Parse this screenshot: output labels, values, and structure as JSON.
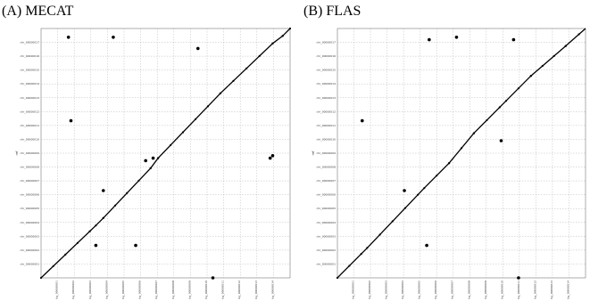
{
  "panels": [
    {
      "title": "(A) MECAT",
      "chart_data": {
        "type": "scatter",
        "title": "(A) MECAT",
        "ylabel": "ref",
        "x_tick_labels": [
          "tig_00000001",
          "tig_00000002",
          "tig_00000003",
          "tig_00000004",
          "tig_00000005",
          "tig_00000006",
          "tig_00000007",
          "tig_00000008",
          "tig_00000009",
          "tig_00000010",
          "tig_00000011",
          "tig_00000012",
          "tig_00000013",
          "tig_00000014"
        ],
        "y_tick_labels": [
          "chr_00000001",
          "chr_00000002",
          "chr_00000003",
          "chr_00000004",
          "chr_00000005",
          "chr_00000006",
          "chr_00000007",
          "chr_00000008",
          "chr_00000009",
          "chr_00000010",
          "chr_00000011",
          "chr_00000012",
          "chr_00000013",
          "chr_00000014",
          "chr_00000015",
          "chr_00000016",
          "chr_00000017"
        ],
        "xlim": [
          0,
          1
        ],
        "ylim": [
          0,
          1
        ],
        "grid": true,
        "diagonal": [
          [
            0.0,
            0.0
          ],
          [
            0.22,
            0.21
          ],
          [
            0.25,
            0.24
          ],
          [
            0.44,
            0.44
          ],
          [
            0.47,
            0.48
          ],
          [
            0.72,
            0.74
          ],
          [
            0.93,
            0.94
          ],
          [
            0.97,
            0.97
          ],
          [
            1.0,
            1.0
          ]
        ],
        "points": [
          {
            "x": 0.11,
            "y": 0.965
          },
          {
            "x": 0.29,
            "y": 0.965
          },
          {
            "x": 0.63,
            "y": 0.92
          },
          {
            "x": 0.12,
            "y": 0.63
          },
          {
            "x": 0.45,
            "y": 0.48
          },
          {
            "x": 0.42,
            "y": 0.47
          },
          {
            "x": 0.92,
            "y": 0.48
          },
          {
            "x": 0.93,
            "y": 0.49
          },
          {
            "x": 0.25,
            "y": 0.35
          },
          {
            "x": 0.22,
            "y": 0.13
          },
          {
            "x": 0.38,
            "y": 0.13
          },
          {
            "x": 0.69,
            "y": 0.0
          }
        ]
      }
    },
    {
      "title": "(B) FLAS",
      "chart_data": {
        "type": "scatter",
        "title": "(B) FLAS",
        "ylabel": "ref",
        "x_tick_labels": [
          "tig_00000001",
          "tig_00000002",
          "tig_00000003",
          "tig_00000004",
          "tig_00000005",
          "tig_00000006",
          "tig_00000007",
          "tig_00000008",
          "tig_00000009",
          "tig_00000010",
          "tig_00000011",
          "tig_00000012",
          "tig_00000013",
          "tig_00000014"
        ],
        "y_tick_labels": [
          "chr_00000001",
          "chr_00000002",
          "chr_00000003",
          "chr_00000004",
          "chr_00000005",
          "chr_00000006",
          "chr_00000007",
          "chr_00000008",
          "chr_00000009",
          "chr_00000010",
          "chr_00000011",
          "chr_00000012",
          "chr_00000013",
          "chr_00000014",
          "chr_00000015",
          "chr_00000016",
          "chr_00000017"
        ],
        "xlim": [
          0,
          1
        ],
        "ylim": [
          0,
          1
        ],
        "grid": true,
        "diagonal": [
          [
            0.0,
            0.0
          ],
          [
            0.12,
            0.12
          ],
          [
            0.35,
            0.36
          ],
          [
            0.45,
            0.46
          ],
          [
            0.55,
            0.58
          ],
          [
            0.68,
            0.71
          ],
          [
            0.78,
            0.81
          ],
          [
            0.92,
            0.93
          ],
          [
            1.0,
            1.0
          ]
        ],
        "points": [
          {
            "x": 0.37,
            "y": 0.955
          },
          {
            "x": 0.48,
            "y": 0.965
          },
          {
            "x": 0.71,
            "y": 0.955
          },
          {
            "x": 0.1,
            "y": 0.63
          },
          {
            "x": 0.66,
            "y": 0.55
          },
          {
            "x": 0.27,
            "y": 0.35
          },
          {
            "x": 0.36,
            "y": 0.13
          },
          {
            "x": 0.73,
            "y": 0.0
          }
        ]
      }
    }
  ]
}
